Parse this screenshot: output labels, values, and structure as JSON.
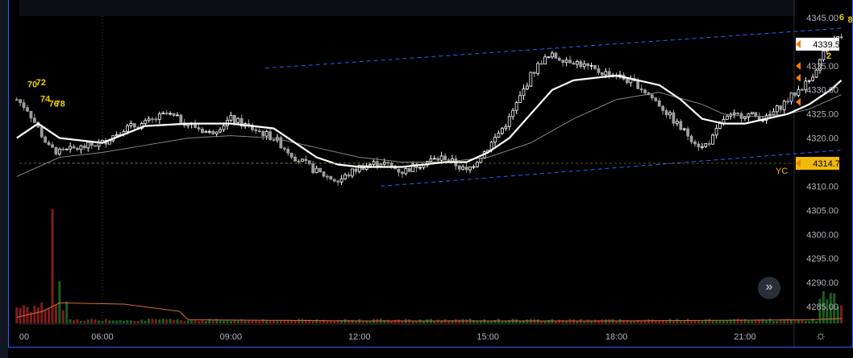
{
  "colors": {
    "background": "#000000",
    "up_candle": "#ffffff",
    "down_candle": "#9e9e9e",
    "ema_fast": "#ffffff",
    "ema_slow": "#888888",
    "channel": "#2962ff",
    "yc_line": "#f0b90b",
    "axis_text": "#b2b5be",
    "price_badge": "#ffffff",
    "yc_badge": "#f0b90b",
    "volume_up": "#1b5e20",
    "volume_down": "#7f1d1d",
    "volume_avg": "#d26d3a",
    "count_labels": "#f0d000",
    "frame": "#2962ff"
  },
  "chart_data": {
    "type": "candlestick",
    "title": "",
    "xlabel": "",
    "ylabel": "",
    "ylim": [
      4281.5,
      4347.0
    ],
    "y_ticks": [
      "4345.00",
      "4340.00",
      "4335.00",
      "4330.00",
      "4325.00",
      "4320.00",
      "4315.00",
      "4310.00",
      "4305.00",
      "4300.00",
      "4295.00",
      "4290.00",
      "4285.00"
    ],
    "x_ticks": [
      "00",
      "06:00",
      "09:00",
      "12:00",
      "15:00",
      "18:00",
      "21:00"
    ],
    "last_price": "4339.50",
    "yc_price": "4314.75",
    "yc_label": "YC",
    "price_markers": [
      4335.0,
      4332.5,
      4327.5
    ],
    "channel_upper": [
      {
        "x": 9.8,
        "y": 4334.5
      },
      {
        "x": 23.25,
        "y": 4342.8
      }
    ],
    "channel_lower": [
      {
        "x": 12.5,
        "y": 4310.0
      },
      {
        "x": 23.25,
        "y": 4317.5
      }
    ],
    "close_path": [
      [
        4.0,
        4328
      ],
      [
        4.25,
        4326
      ],
      [
        4.5,
        4322
      ],
      [
        4.75,
        4318
      ],
      [
        5.0,
        4317
      ],
      [
        5.5,
        4318
      ],
      [
        6.0,
        4319
      ],
      [
        6.5,
        4322
      ],
      [
        7.0,
        4323
      ],
      [
        7.5,
        4325
      ],
      [
        8.0,
        4323
      ],
      [
        8.5,
        4321
      ],
      [
        9.0,
        4324
      ],
      [
        9.5,
        4322
      ],
      [
        10.0,
        4320
      ],
      [
        10.5,
        4316
      ],
      [
        11.0,
        4313
      ],
      [
        11.5,
        4311
      ],
      [
        12.0,
        4314
      ],
      [
        12.5,
        4315
      ],
      [
        13.0,
        4313
      ],
      [
        13.5,
        4315
      ],
      [
        14.0,
        4316
      ],
      [
        14.5,
        4313
      ],
      [
        15.0,
        4318
      ],
      [
        15.5,
        4324
      ],
      [
        16.0,
        4333
      ],
      [
        16.25,
        4336
      ],
      [
        16.5,
        4337
      ],
      [
        17.0,
        4336
      ],
      [
        17.5,
        4334
      ],
      [
        18.0,
        4333
      ],
      [
        18.5,
        4331
      ],
      [
        19.0,
        4327
      ],
      [
        19.5,
        4322
      ],
      [
        20.0,
        4318
      ],
      [
        20.25,
        4320
      ],
      [
        20.5,
        4324
      ],
      [
        21.0,
        4325
      ],
      [
        21.5,
        4324
      ],
      [
        22.0,
        4328
      ],
      [
        22.5,
        4332
      ],
      [
        23.0,
        4340
      ],
      [
        23.25,
        4341
      ]
    ],
    "ema_fast": [
      [
        4.0,
        4320
      ],
      [
        4.5,
        4323
      ],
      [
        5.0,
        4320
      ],
      [
        6.0,
        4319
      ],
      [
        7.0,
        4322.5
      ],
      [
        8.0,
        4323
      ],
      [
        9.0,
        4323
      ],
      [
        10.0,
        4322
      ],
      [
        10.5,
        4319
      ],
      [
        11.0,
        4316
      ],
      [
        11.5,
        4314.5
      ],
      [
        12.0,
        4314
      ],
      [
        12.5,
        4314
      ],
      [
        13.0,
        4314
      ],
      [
        14.0,
        4315
      ],
      [
        14.5,
        4315
      ],
      [
        15.0,
        4317
      ],
      [
        15.5,
        4320
      ],
      [
        16.0,
        4325
      ],
      [
        16.5,
        4330
      ],
      [
        17.0,
        4332
      ],
      [
        17.5,
        4332.5
      ],
      [
        18.0,
        4333
      ],
      [
        18.5,
        4332
      ],
      [
        19.0,
        4331
      ],
      [
        19.5,
        4328
      ],
      [
        20.0,
        4324
      ],
      [
        20.5,
        4323
      ],
      [
        21.0,
        4323
      ],
      [
        21.5,
        4324
      ],
      [
        22.0,
        4325
      ],
      [
        22.5,
        4327
      ],
      [
        23.0,
        4330
      ],
      [
        23.25,
        4332
      ]
    ],
    "ema_slow": [
      [
        4.0,
        4312
      ],
      [
        5.0,
        4316
      ],
      [
        6.0,
        4317
      ],
      [
        7.0,
        4318.5
      ],
      [
        8.0,
        4320
      ],
      [
        9.0,
        4320.5
      ],
      [
        10.0,
        4320
      ],
      [
        11.0,
        4318
      ],
      [
        12.0,
        4316
      ],
      [
        13.0,
        4315
      ],
      [
        14.0,
        4315
      ],
      [
        15.0,
        4316
      ],
      [
        16.0,
        4319
      ],
      [
        17.0,
        4324
      ],
      [
        18.0,
        4328
      ],
      [
        19.0,
        4329.5
      ],
      [
        20.0,
        4327
      ],
      [
        20.5,
        4325
      ],
      [
        21.0,
        4324.5
      ],
      [
        21.5,
        4324.5
      ],
      [
        22.0,
        4325
      ],
      [
        22.5,
        4326
      ],
      [
        23.0,
        4328
      ],
      [
        23.25,
        4329
      ]
    ],
    "volume_spikes": [
      [
        4.85,
        0.95
      ],
      [
        5.0,
        0.35
      ],
      [
        4.2,
        0.15
      ],
      [
        22.9,
        0.2
      ],
      [
        23.1,
        0.25
      ]
    ],
    "count_labels": [
      {
        "text": "70",
        "x": 4.25,
        "y": 4330.5
      },
      {
        "text": "72",
        "x": 4.45,
        "y": 4331.0
      },
      {
        "text": "74",
        "x": 4.55,
        "y": 4327.5
      },
      {
        "text": "76",
        "x": 4.75,
        "y": 4326.5
      },
      {
        "text": "78",
        "x": 4.9,
        "y": 4326.5
      },
      {
        "text": "2",
        "x": 22.9,
        "y": 4336.5
      },
      {
        "text": "4",
        "x": 23.05,
        "y": 4338.5
      },
      {
        "text": "6",
        "x": 23.2,
        "y": 4344.5
      },
      {
        "text": "8",
        "x": 23.4,
        "y": 4344.0
      }
    ]
  },
  "buttons": {
    "scroll_right": "»",
    "settings": "☼"
  }
}
